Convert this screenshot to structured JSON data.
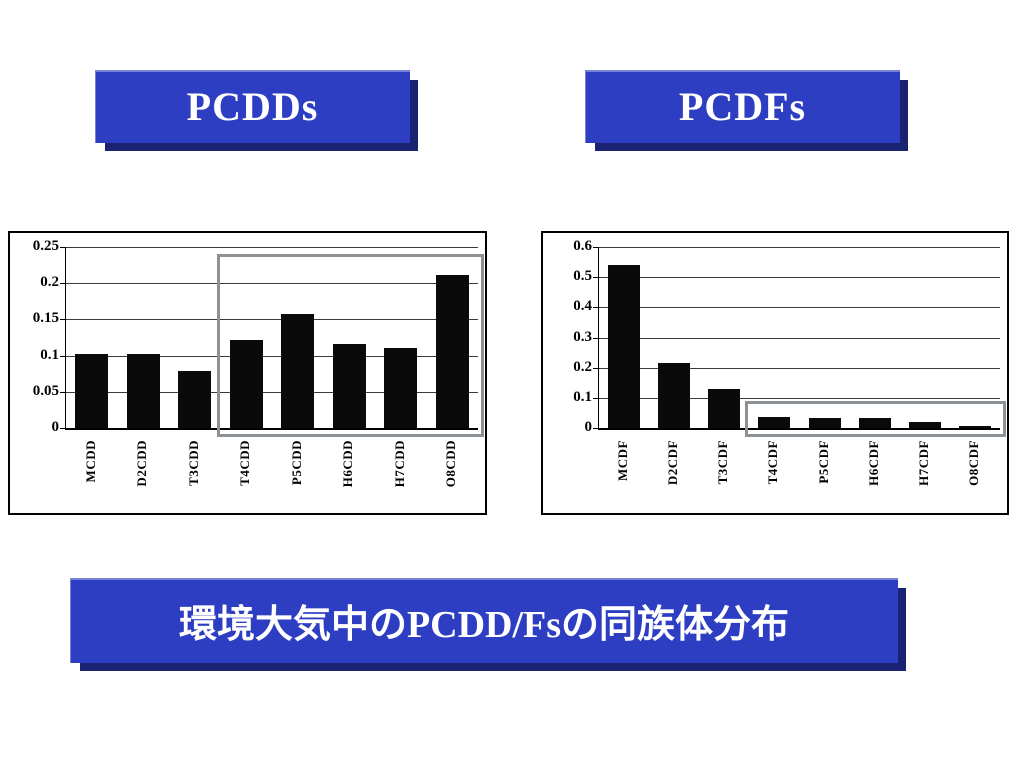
{
  "slide": {
    "pcdd_title": "PCDDs",
    "pcdf_title": "PCDFs",
    "caption": "環境大気中のPCDD/Fsの同族体分布"
  },
  "colors": {
    "banner_blue": "#2e3ec2",
    "banner_dark_blue": "#1a2372",
    "bar_black": "#0a0a0a",
    "highlight_gray": "#8c9196"
  },
  "chart_data": [
    {
      "type": "bar",
      "title": "PCDDs",
      "categories": [
        "MCDD",
        "D2CDD",
        "T3CDD",
        "T4CDD",
        "P5CDD",
        "H6CDD",
        "H7CDD",
        "O8CDD"
      ],
      "values": [
        0.102,
        0.102,
        0.079,
        0.121,
        0.158,
        0.116,
        0.111,
        0.212
      ],
      "xlabel": "",
      "ylabel": "",
      "ylim": [
        0,
        0.25
      ],
      "yticks": [
        0,
        0.05,
        0.1,
        0.15,
        0.2,
        0.25
      ],
      "grid": true,
      "legend": "none",
      "bar_color": "#0a0a0a",
      "highlight": {
        "from": "T4CDD",
        "to": "O8CDD",
        "start_index": 3,
        "top_value": 0.24
      }
    },
    {
      "type": "bar",
      "title": "PCDFs",
      "categories": [
        "MCDF",
        "D2CDF",
        "T3CDF",
        "T4CDF",
        "P5CDF",
        "H6CDF",
        "H7CDF",
        "O8CDF"
      ],
      "values": [
        0.54,
        0.215,
        0.13,
        0.038,
        0.033,
        0.033,
        0.02,
        0.006
      ],
      "xlabel": "",
      "ylabel": "",
      "ylim": [
        0,
        0.6
      ],
      "yticks": [
        0,
        0.1,
        0.2,
        0.3,
        0.4,
        0.5,
        0.6
      ],
      "grid": true,
      "legend": "none",
      "bar_color": "#0a0a0a",
      "highlight": {
        "from": "T4CDF",
        "to": "O8CDF",
        "start_index": 3,
        "top_value": 0.09
      }
    }
  ]
}
